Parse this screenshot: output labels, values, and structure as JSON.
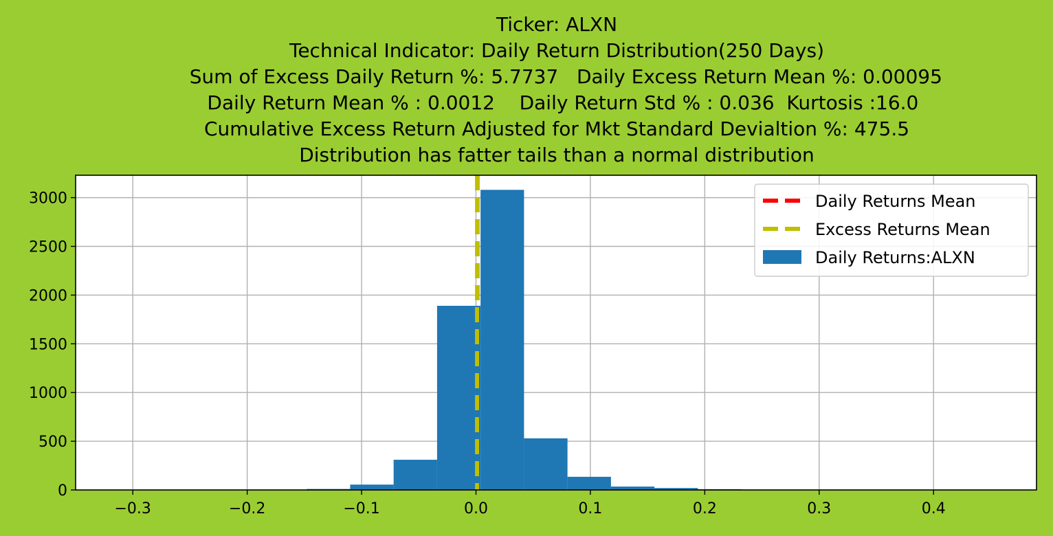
{
  "chart_data": {
    "type": "bar",
    "title_lines": [
      "Ticker: ALXN",
      "Technical Indicator: Daily Return Distribution(250 Days)",
      "   Sum of Excess Daily Return %: 5.7737   Daily Excess Return Mean %: 0.00095",
      "  Daily Return Mean % : 0.0012    Daily Return Std % : 0.036  Kurtosis :16.0",
      "Cumulative Excess Return Adjusted for Mkt Standard Devialtion %: 475.5",
      "Distribution has fatter tails than a normal distribution"
    ],
    "xlim": [
      -0.35,
      0.49
    ],
    "ylim": [
      0,
      3230
    ],
    "x_ticks": [
      -0.3,
      -0.2,
      -0.1,
      0.0,
      0.1,
      0.2,
      0.3,
      0.4
    ],
    "x_tick_labels": [
      "−0.3",
      "−0.2",
      "−0.1",
      "0.0",
      "0.1",
      "0.2",
      "0.3",
      "0.4"
    ],
    "y_ticks": [
      0,
      500,
      1000,
      1500,
      2000,
      2500,
      3000
    ],
    "y_tick_labels": [
      "0",
      "500",
      "1000",
      "1500",
      "2000",
      "2500",
      "3000"
    ],
    "grid": true,
    "legend_position": "top-right",
    "bins": {
      "edges": [
        -0.3,
        -0.262,
        -0.224,
        -0.186,
        -0.148,
        -0.11,
        -0.072,
        -0.034,
        0.004,
        0.042,
        0.08,
        0.118,
        0.156,
        0.194,
        0.232,
        0.27,
        0.308,
        0.346,
        0.384,
        0.422,
        0.46
      ],
      "counts": [
        1,
        1,
        2,
        3,
        10,
        55,
        310,
        1890,
        3080,
        530,
        135,
        35,
        20,
        8,
        3,
        2,
        1,
        1,
        1,
        1
      ],
      "edges_fallback": true
    },
    "series": [
      {
        "name": "Daily Returns:ALXN",
        "kind": "histogram",
        "color": "#1f77b4"
      },
      {
        "name": "Daily Returns Mean",
        "kind": "vline",
        "x": 0.0012,
        "color": "#ff0000",
        "style": "dashed"
      },
      {
        "name": "Excess Returns Mean",
        "kind": "vline",
        "x": 0.00095,
        "color": "#bfbf00",
        "style": "dashed"
      }
    ]
  }
}
